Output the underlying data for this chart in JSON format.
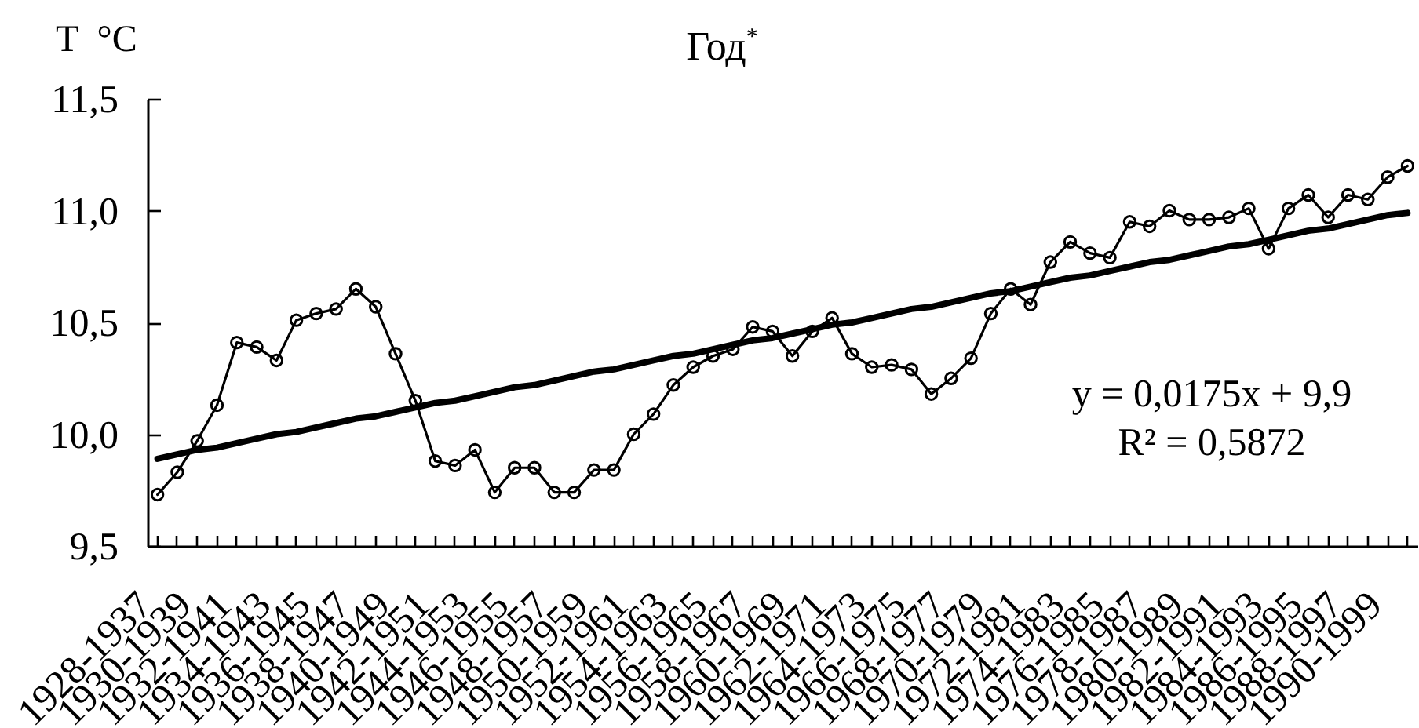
{
  "chart_data": {
    "type": "line",
    "title": "Год$^{*}$",
    "ylabel": "T  °C",
    "categories": [
      "1928-1937",
      null,
      "1930-1939",
      null,
      "1932-1941",
      null,
      "1934-1943",
      null,
      "1936-1945",
      null,
      "1938-1947",
      null,
      "1940-1949",
      null,
      "1942-1951",
      null,
      "1944-1953",
      null,
      "1946-1955",
      null,
      "1948-1957",
      null,
      "1950-1959",
      null,
      "1952-1961",
      null,
      "1954-1963",
      null,
      "1956-1965",
      null,
      "1958-1967",
      null,
      "1960-1969",
      null,
      "1962-1971",
      null,
      "1964-1973",
      null,
      "1966-1975",
      null,
      "1968-1977",
      null,
      "1970-1979",
      null,
      "1972-1981",
      null,
      "1974-1983",
      null,
      "1976-1985",
      null,
      "1978-1987",
      null,
      "1980-1989",
      null,
      "1982-1991",
      null,
      "1984-1993",
      null,
      "1986-1995",
      null,
      "1988-1997",
      null,
      "1990-1999",
      null
    ],
    "series": [
      {
        "color": "#000000",
        "marker": "circle",
        "values": [
          9.73,
          9.83,
          9.97,
          10.13,
          10.41,
          10.39,
          10.33,
          10.51,
          10.54,
          10.56,
          10.65,
          10.57,
          10.36,
          10.15,
          9.88,
          9.86,
          9.93,
          9.74,
          9.85,
          9.85,
          9.74,
          9.74,
          9.84,
          9.84,
          10.0,
          10.09,
          10.22,
          10.3,
          10.35,
          10.38,
          10.48,
          10.46,
          10.35,
          10.46,
          10.52,
          10.36,
          10.3,
          10.31,
          10.29,
          10.18,
          10.25,
          10.34,
          10.54,
          10.65,
          10.58,
          10.77,
          10.86,
          10.81,
          10.79,
          10.95,
          10.93,
          11.0,
          10.96,
          10.96,
          10.97,
          11.01,
          10.83,
          11.01,
          11.07,
          10.97,
          11.07,
          11.05,
          11.15,
          11.2
        ]
      },
      {
        "type": "line",
        "color": "#000000",
        "marker": "none",
        "values": [
          9.89,
          9.91,
          9.93,
          9.94,
          9.96,
          9.98,
          10.0,
          10.01,
          10.03,
          10.05,
          10.07,
          10.08,
          10.1,
          10.12,
          10.14,
          10.15,
          10.17,
          10.19,
          10.21,
          10.22,
          10.24,
          10.26,
          10.28,
          10.29,
          10.31,
          10.33,
          10.35,
          10.36,
          10.38,
          10.4,
          10.42,
          10.43,
          10.45,
          10.47,
          10.49,
          10.5,
          10.52,
          10.54,
          10.56,
          10.57,
          10.59,
          10.61,
          10.63,
          10.64,
          10.66,
          10.68,
          10.7,
          10.71,
          10.73,
          10.75,
          10.77,
          10.78,
          10.8,
          10.82,
          10.84,
          10.85,
          10.87,
          10.89,
          10.91,
          10.92,
          10.94,
          10.96,
          10.98,
          10.99
        ]
      }
    ],
    "ylim": [
      9.5,
      11.5
    ],
    "yticks": [
      {
        "value": 9.5,
        "label": "9,5"
      },
      {
        "value": 10.0,
        "label": "10,0"
      },
      {
        "value": 10.5,
        "label": "10,5"
      },
      {
        "value": 11.0,
        "label": "11,0"
      },
      {
        "value": 11.5,
        "label": "11,5"
      }
    ],
    "annotations": [
      "y = 0,0175x + 9,9",
      "R² = 0,5872"
    ]
  }
}
